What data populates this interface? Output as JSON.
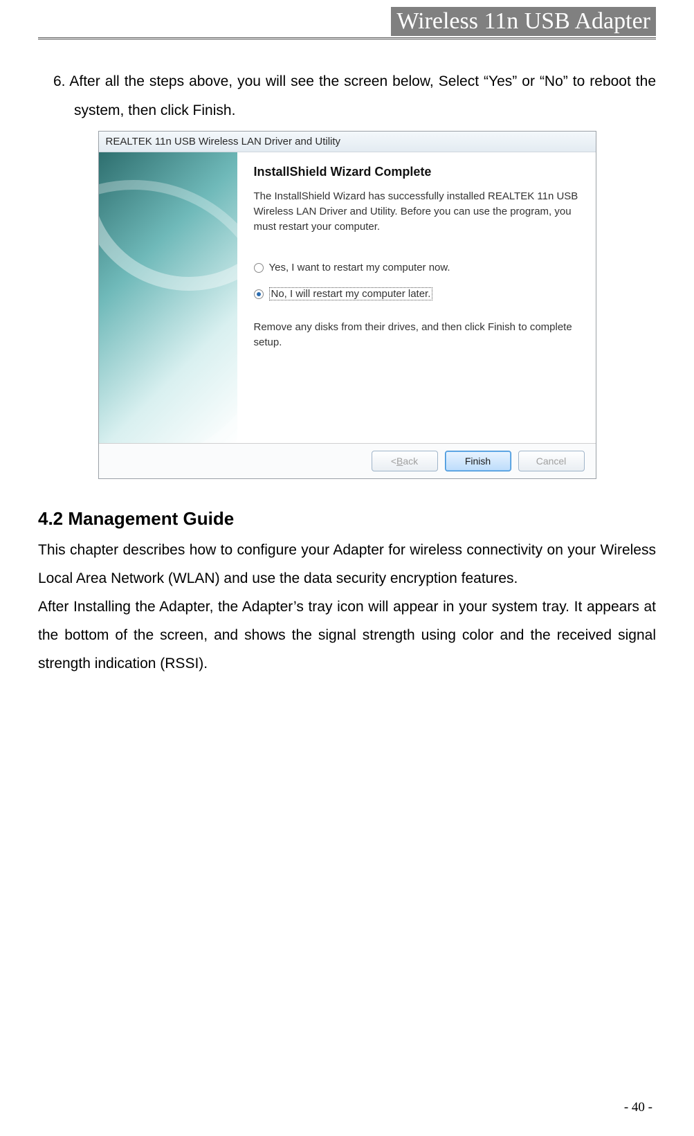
{
  "header": {
    "title": "Wireless 11n USB Adapter"
  },
  "step": {
    "number": "6.",
    "text": "After all the steps above, you will see the screen below, Select “Yes” or “No” to reboot the system, then click Finish."
  },
  "installer": {
    "titlebar": "REALTEK 11n USB Wireless LAN Driver and Utility",
    "wizard_title": "InstallShield Wizard Complete",
    "description": "The InstallShield Wizard has successfully installed REALTEK 11n USB Wireless LAN Driver and Utility.  Before you can use the program, you must restart your computer.",
    "option_yes": "Yes, I want to restart my computer now.",
    "option_no": "No, I will restart my computer later.",
    "remove_text": "Remove any disks from their drives, and then click Finish to complete setup.",
    "buttons": {
      "back_prefix": "< ",
      "back_letter": "B",
      "back_suffix": "ack",
      "finish": "Finish",
      "cancel": "Cancel"
    },
    "colors": {
      "titlebar_bg_top": "#f4f8fb",
      "titlebar_bg_bottom": "#e3ebf2",
      "finish_bg_top": "#e9f4ff",
      "finish_bg_bottom": "#bcdcfb",
      "finish_border": "#3d8fd6"
    }
  },
  "section": {
    "heading": "4.2    Management Guide",
    "para1": "This chapter describes how to configure your Adapter for wireless connectivity on your Wireless Local Area Network (WLAN) and use the data security encryption features.",
    "para2": "After Installing the Adapter, the Adapter’s tray icon will appear in your system tray. It appears at the bottom of the screen, and shows the signal strength using color and the received signal strength indication (RSSI)."
  },
  "page_number": "- 40 -"
}
